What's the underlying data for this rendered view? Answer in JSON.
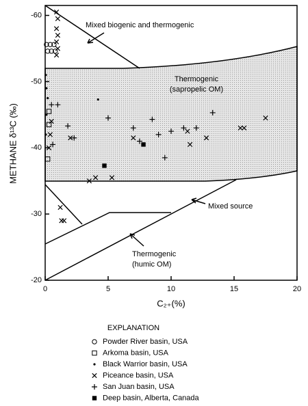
{
  "chart_data": {
    "type": "scatter",
    "y_label": "METHANE δ¹³C (‰)",
    "x_label": "C₂₊(%)",
    "xlim": [
      0,
      20
    ],
    "xticks": [
      0,
      5,
      10,
      15,
      20
    ],
    "ylim": [
      -20,
      -61.5
    ],
    "yticks": [
      -60,
      -50,
      -40,
      -30,
      -20
    ],
    "annotations": [
      "Mixed biogenic and thermogenic",
      "Thermogenic",
      "(sapropelic OM)",
      "Mixed source",
      "Thermogenic",
      "(humic OM)"
    ],
    "legend_title": "EXPLANATION",
    "series": [
      {
        "name": "Powder River basin, USA",
        "marker": "circle-open",
        "color": "#000",
        "x": [
          0.1,
          0.4,
          0.7,
          0.2,
          0.5,
          0.8
        ],
        "values": [
          -55.6,
          -55.6,
          -55.6,
          -54.6,
          -54.6,
          -54.6
        ]
      },
      {
        "name": "Arkoma basin, USA",
        "marker": "square-open",
        "color": "#000",
        "x": [
          0.3,
          0.3,
          0.2
        ],
        "values": [
          -45.5,
          -43.5,
          -38.3
        ]
      },
      {
        "name": "Black Warrior basin, USA",
        "marker": "dot",
        "color": "#000",
        "x": [
          0.05,
          0.1,
          0.2,
          0.1,
          0.05,
          4.2
        ],
        "values": [
          -51,
          -49,
          -47.5,
          -45,
          -42,
          -47.3
        ]
      },
      {
        "name": "Piceance basin, USA",
        "marker": "x",
        "color": "#000",
        "x": [
          0.9,
          1,
          0.9,
          1,
          0.9,
          1,
          0.9,
          0.4,
          0.5,
          0.3,
          1.2,
          1.3,
          1.5,
          2,
          3.5,
          4,
          5.3,
          7,
          11.5,
          11.3,
          12.8,
          15.5,
          15.8,
          17.5
        ],
        "values": [
          -60.5,
          -59.5,
          -58,
          -57,
          -56,
          -55,
          -54,
          -42,
          -44,
          -40,
          -31,
          -29,
          -29,
          -41.5,
          -35,
          -35.5,
          -35.5,
          -41.5,
          -40.5,
          -42.5,
          -41.5,
          -43,
          -43,
          -44.5
        ]
      },
      {
        "name": "San Juan basin, USA",
        "marker": "plus",
        "color": "#000",
        "x": [
          0.5,
          1,
          0.6,
          1.8,
          2.3,
          5,
          7,
          8.5,
          9,
          9.5,
          10,
          11,
          12,
          13.3,
          7.5
        ],
        "values": [
          -46.5,
          -46.5,
          -40.5,
          -43.3,
          -41.5,
          -44.5,
          -43,
          -44.3,
          -42,
          -38.5,
          -42.5,
          -43,
          -43,
          -45.3,
          -41
        ]
      },
      {
        "name": "Deep basin, Alberta, Canada",
        "marker": "square-filled",
        "color": "#000",
        "x": [
          4.7,
          7.8
        ],
        "values": [
          -37.3,
          -40.5
        ]
      }
    ]
  }
}
